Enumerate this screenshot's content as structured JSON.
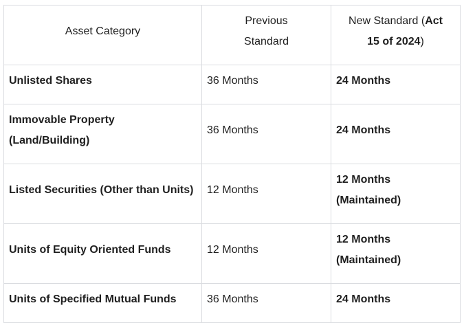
{
  "table": {
    "headers": {
      "asset_category": "Asset Category",
      "previous_standard": "Previous Standard",
      "new_standard_prefix": "New Standard (",
      "new_standard_bold": "Act 15 of 2024",
      "new_standard_suffix": ")"
    },
    "rows": [
      {
        "category": "Unlisted Shares",
        "previous": "36 Months",
        "new": "24 Months"
      },
      {
        "category": "Immovable Property (Land/Building)",
        "previous": "36 Months",
        "new": "24 Months"
      },
      {
        "category": "Listed Securities (Other than Units)",
        "previous": "12 Months",
        "new": "12 Months (Maintained)"
      },
      {
        "category": "Units of Equity Oriented Funds",
        "previous": "12 Months",
        "new": "12 Months (Maintained)"
      },
      {
        "category": "Units of Specified Mutual Funds",
        "previous": "36 Months",
        "new": "24 Months"
      }
    ]
  },
  "colors": {
    "text": "#1f1f1f",
    "border": "#dadce0"
  }
}
